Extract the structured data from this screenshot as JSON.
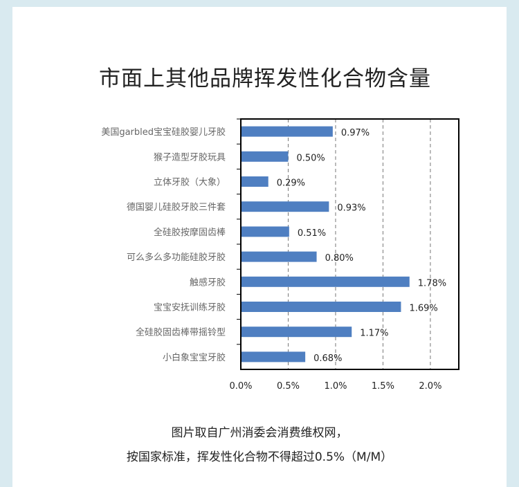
{
  "title": "市面上其他品牌挥发性化合物含量",
  "caption": {
    "line1": "图片取自广州消委会消费维权网，",
    "line2": "按国家标准，挥发性化合物不得超过0.5%（M/M）"
  },
  "colors": {
    "bar": "#4f7fc1",
    "frame": "#000000",
    "grid": "#777777",
    "background": "#d9eaf0"
  },
  "chart_data": {
    "type": "bar",
    "orientation": "horizontal",
    "title": "市面上其他品牌挥发性化合物含量",
    "xlabel": "",
    "ylabel": "",
    "xlim": [
      0,
      2.3
    ],
    "xticks": [
      0,
      0.5,
      1.0,
      1.5,
      2.0
    ],
    "xtick_labels": [
      "0.0%",
      "0.5%",
      "1.0%",
      "1.5%",
      "2.0%"
    ],
    "grid": "vertical dashed",
    "categories": [
      "美国garbled宝宝硅胶婴儿牙胶",
      "猴子造型牙胶玩具",
      "立体牙胶（大象）",
      "德国婴儿硅胶牙胶三件套",
      "全硅胶按摩固齿棒",
      "可么多么多功能硅胶牙胶",
      "触感牙胶",
      "宝宝安抚训练牙胶",
      "全硅胶固齿棒带摇铃型",
      "小白象宝宝牙胶"
    ],
    "values": [
      0.97,
      0.5,
      0.29,
      0.93,
      0.51,
      0.8,
      1.78,
      1.69,
      1.17,
      0.68
    ],
    "value_labels": [
      "0.97%",
      "0.50%",
      "0.29%",
      "0.93%",
      "0.51%",
      "0.80%",
      "1.78%",
      "1.69%",
      "1.17%",
      "0.68%"
    ]
  }
}
